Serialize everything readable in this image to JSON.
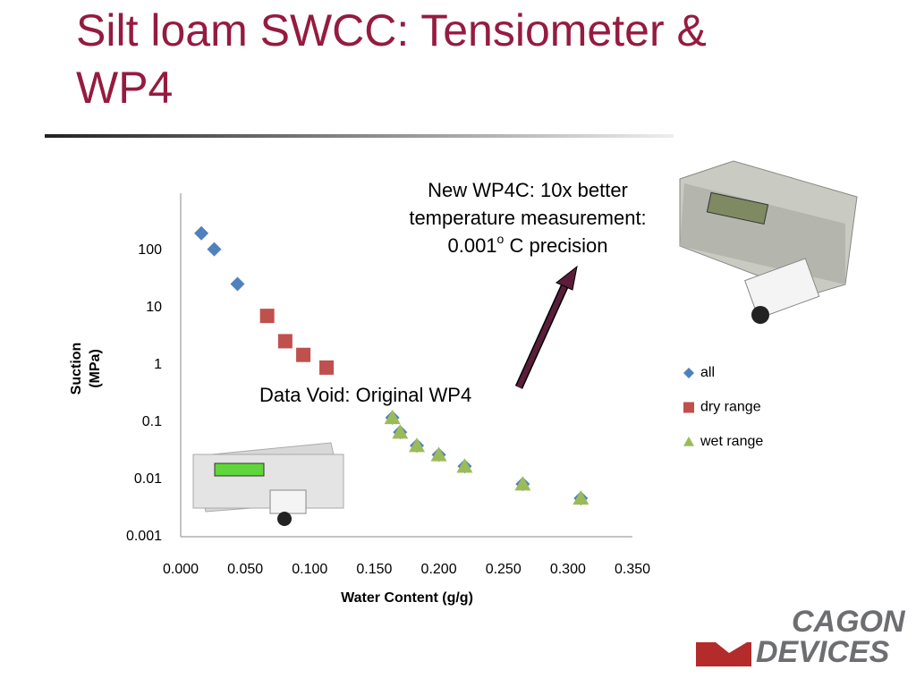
{
  "chart_data": {
    "type": "scatter",
    "title": [
      "Silt loam SWCC: Tensiometer &",
      "WP4"
    ],
    "xlabel": "Water Content (g/g)",
    "ylabel": [
      "Suction",
      "(MPa)"
    ],
    "log_y": true,
    "xlim": [
      0,
      0.35
    ],
    "xticks": [
      {
        "value": 0,
        "label": "0.000"
      },
      {
        "value": 0.05,
        "label": "0.050"
      },
      {
        "value": 0.1,
        "label": "0.100"
      },
      {
        "value": 0.15,
        "label": "0.150"
      },
      {
        "value": 0.2,
        "label": "0.200"
      },
      {
        "value": 0.25,
        "label": "0.250"
      },
      {
        "value": 0.3,
        "label": "0.300"
      },
      {
        "value": 0.35,
        "label": "0.350"
      }
    ],
    "ylim": [
      0.001,
      1000
    ],
    "yticks": [
      0.001,
      0.01,
      0.1,
      1,
      10,
      100
    ],
    "grid": false,
    "legend": "right",
    "series": [
      {
        "name": "all",
        "color": "#4f81bd",
        "marker": "diamond",
        "x": [
          0.016,
          0.026,
          0.044,
          0.067,
          0.081,
          0.095,
          0.113,
          0.164,
          0.17,
          0.183,
          0.2,
          0.22,
          0.265,
          0.31
        ],
        "values": [
          200,
          105,
          26,
          7.2,
          2.6,
          1.5,
          0.9,
          0.12,
          0.067,
          0.039,
          0.027,
          0.017,
          0.0083,
          0.0047
        ]
      },
      {
        "name": "dry range",
        "color": "#c0504d",
        "marker": "square",
        "x": [
          0.067,
          0.081,
          0.095,
          0.113
        ],
        "values": [
          7.2,
          2.6,
          1.5,
          0.9
        ]
      },
      {
        "name": "wet range",
        "color": "#9bbb59",
        "marker": "triangle",
        "x": [
          0.164,
          0.17,
          0.183,
          0.2,
          0.22,
          0.265,
          0.31
        ],
        "values": [
          0.12,
          0.067,
          0.039,
          0.027,
          0.017,
          0.0083,
          0.0047
        ]
      }
    ],
    "annotations": {
      "new_wp4c": {
        "line1": "New WP4C: 10x better",
        "line2": "temperature measurement:",
        "value": "0.001",
        "superscript": "o",
        "rest": " C precision"
      },
      "data_void": "Data Void: Original WP4"
    }
  },
  "logo": {
    "line1": "CAGON",
    "line2": "DEVICES"
  }
}
